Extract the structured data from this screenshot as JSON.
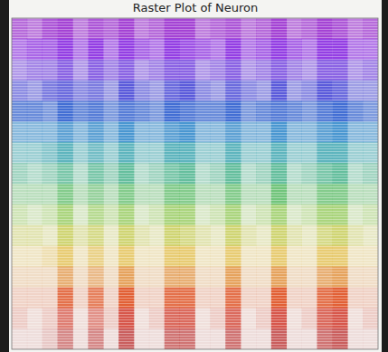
{
  "chart_data": {
    "type": "heatmap",
    "title": "Raster Plot of Neuron",
    "tick_labels": false,
    "grid": false,
    "colors": [
      "#9b30d0",
      "#8a2be2",
      "#7040e0",
      "#4a4ad8",
      "#2f5fd0",
      "#1f7fc8",
      "#1f9aa8",
      "#2aa87a",
      "#3bb04a",
      "#7ac030",
      "#b8c020",
      "#e0b020",
      "#e08020",
      "#e05020",
      "#d03020",
      "#b82020"
    ],
    "color_range": [
      0,
      1
    ],
    "cells": [
      [
        0.7,
        0.6,
        0.8,
        0.9,
        0.6,
        0.8,
        0.7,
        0.9,
        0.6,
        0.7,
        0.9,
        0.9,
        0.6,
        0.7,
        0.8,
        0.6,
        0.7,
        0.9,
        0.6,
        0.7,
        0.9,
        0.8,
        0.6,
        0.7
      ],
      [
        0.6,
        0.7,
        0.7,
        0.9,
        0.6,
        0.9,
        0.6,
        0.9,
        0.7,
        0.6,
        0.9,
        0.8,
        0.7,
        0.6,
        0.9,
        0.6,
        0.7,
        0.9,
        0.7,
        0.6,
        0.9,
        0.9,
        0.6,
        0.6
      ],
      [
        0.5,
        0.6,
        0.6,
        0.8,
        0.5,
        0.8,
        0.6,
        0.8,
        0.5,
        0.6,
        0.8,
        0.8,
        0.5,
        0.6,
        0.8,
        0.5,
        0.6,
        0.8,
        0.6,
        0.5,
        0.8,
        0.8,
        0.5,
        0.6
      ],
      [
        0.6,
        0.5,
        0.7,
        0.8,
        0.6,
        0.7,
        0.5,
        0.9,
        0.6,
        0.5,
        0.8,
        0.9,
        0.6,
        0.5,
        0.8,
        0.6,
        0.5,
        0.9,
        0.5,
        0.6,
        0.9,
        0.8,
        0.5,
        0.5
      ],
      [
        0.7,
        0.7,
        0.6,
        0.9,
        0.7,
        0.8,
        0.6,
        0.8,
        0.7,
        0.6,
        0.9,
        0.8,
        0.7,
        0.7,
        0.9,
        0.6,
        0.7,
        0.8,
        0.7,
        0.6,
        0.8,
        0.9,
        0.7,
        0.6
      ],
      [
        0.5,
        0.5,
        0.5,
        0.7,
        0.5,
        0.7,
        0.5,
        0.8,
        0.5,
        0.5,
        0.7,
        0.8,
        0.5,
        0.5,
        0.7,
        0.5,
        0.5,
        0.8,
        0.5,
        0.5,
        0.7,
        0.8,
        0.5,
        0.5
      ],
      [
        0.4,
        0.4,
        0.5,
        0.7,
        0.4,
        0.6,
        0.4,
        0.7,
        0.4,
        0.4,
        0.7,
        0.7,
        0.4,
        0.4,
        0.7,
        0.4,
        0.4,
        0.7,
        0.4,
        0.4,
        0.7,
        0.7,
        0.4,
        0.4
      ],
      [
        0.4,
        0.3,
        0.4,
        0.6,
        0.3,
        0.6,
        0.4,
        0.7,
        0.3,
        0.4,
        0.6,
        0.7,
        0.3,
        0.4,
        0.7,
        0.3,
        0.4,
        0.7,
        0.3,
        0.4,
        0.6,
        0.7,
        0.3,
        0.4
      ],
      [
        0.3,
        0.3,
        0.3,
        0.6,
        0.3,
        0.5,
        0.3,
        0.6,
        0.3,
        0.3,
        0.6,
        0.6,
        0.3,
        0.3,
        0.6,
        0.3,
        0.3,
        0.7,
        0.3,
        0.3,
        0.6,
        0.6,
        0.3,
        0.3
      ],
      [
        0.3,
        0.2,
        0.3,
        0.6,
        0.2,
        0.5,
        0.3,
        0.6,
        0.2,
        0.3,
        0.6,
        0.6,
        0.2,
        0.3,
        0.6,
        0.2,
        0.3,
        0.6,
        0.2,
        0.3,
        0.6,
        0.6,
        0.2,
        0.3
      ],
      [
        0.3,
        0.3,
        0.2,
        0.6,
        0.3,
        0.5,
        0.2,
        0.6,
        0.3,
        0.2,
        0.6,
        0.5,
        0.3,
        0.2,
        0.6,
        0.3,
        0.2,
        0.6,
        0.3,
        0.2,
        0.5,
        0.6,
        0.3,
        0.2
      ],
      [
        0.2,
        0.2,
        0.3,
        0.6,
        0.2,
        0.5,
        0.2,
        0.6,
        0.2,
        0.2,
        0.6,
        0.6,
        0.2,
        0.2,
        0.6,
        0.2,
        0.2,
        0.6,
        0.2,
        0.2,
        0.6,
        0.6,
        0.2,
        0.2
      ],
      [
        0.2,
        0.2,
        0.2,
        0.6,
        0.2,
        0.5,
        0.2,
        0.7,
        0.2,
        0.2,
        0.6,
        0.6,
        0.2,
        0.2,
        0.7,
        0.2,
        0.2,
        0.7,
        0.2,
        0.2,
        0.6,
        0.7,
        0.2,
        0.2
      ],
      [
        0.2,
        0.2,
        0.2,
        0.8,
        0.2,
        0.7,
        0.2,
        0.9,
        0.2,
        0.2,
        0.8,
        0.8,
        0.2,
        0.2,
        0.8,
        0.2,
        0.2,
        0.9,
        0.2,
        0.2,
        0.8,
        0.9,
        0.2,
        0.2
      ],
      [
        0.2,
        0.1,
        0.2,
        0.6,
        0.1,
        0.5,
        0.2,
        0.8,
        0.1,
        0.2,
        0.7,
        0.7,
        0.1,
        0.2,
        0.7,
        0.1,
        0.2,
        0.8,
        0.1,
        0.2,
        0.7,
        0.8,
        0.1,
        0.2
      ],
      [
        0.1,
        0.1,
        0.2,
        0.5,
        0.1,
        0.5,
        0.1,
        0.7,
        0.1,
        0.1,
        0.6,
        0.6,
        0.1,
        0.1,
        0.6,
        0.1,
        0.1,
        0.7,
        0.1,
        0.1,
        0.6,
        0.7,
        0.1,
        0.1
      ]
    ]
  }
}
